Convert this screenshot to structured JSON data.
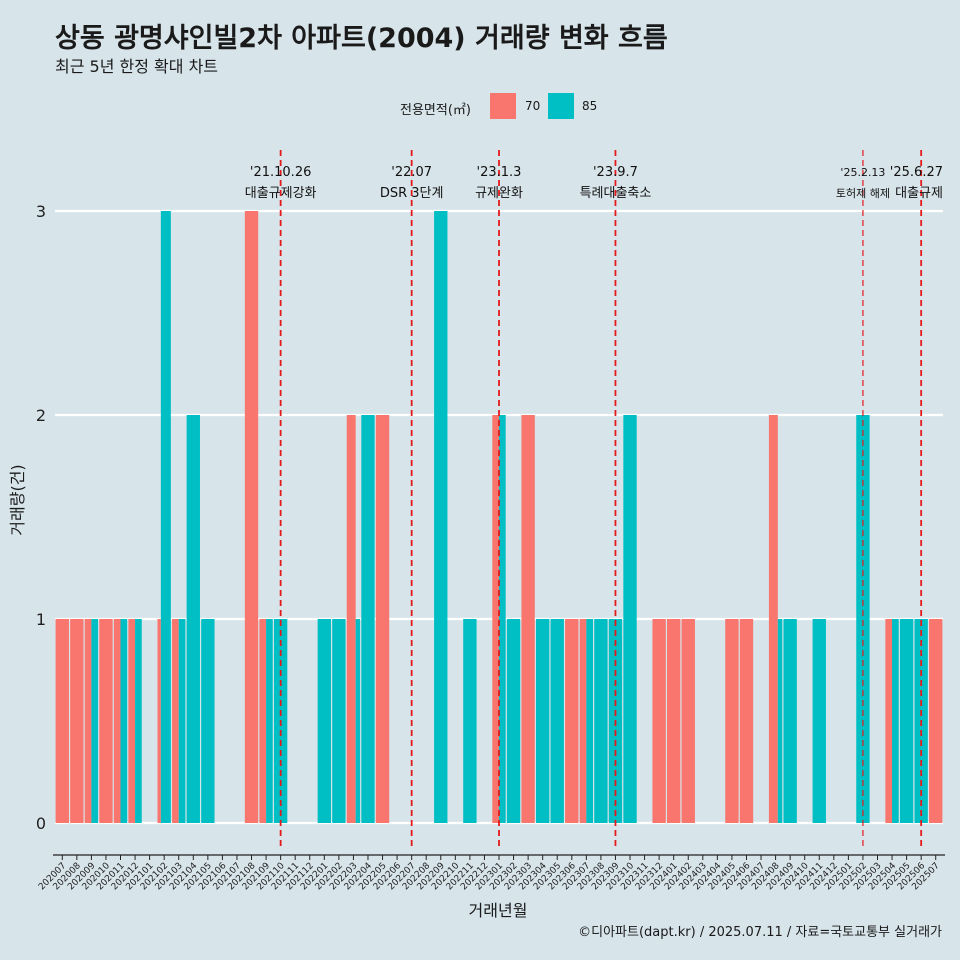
{
  "header": {
    "title": "상동 광명샤인빌2차 아파트(2004) 거래량 변화 흐름",
    "subtitle": "최근 5년 한정 확대 차트"
  },
  "legend": {
    "title": "전용면적(㎡)",
    "items": [
      {
        "label": "70",
        "color": "#f8766d"
      },
      {
        "label": "85",
        "color": "#00bfc4"
      }
    ]
  },
  "axes": {
    "xlabel": "거래년월",
    "ylabel": "거래량(건)"
  },
  "caption": "©디아파트(dapt.kr) / 2025.07.11 / 자료=국토교통부 실거래가",
  "colors": {
    "background": "#d7e4ea",
    "s70": "#f8766d",
    "s85": "#00bfc4",
    "vline": "#e31a1c"
  },
  "chart_data": {
    "type": "bar",
    "title": "상동 광명샤인빌2차 아파트(2004) 거래량 변화 흐름",
    "subtitle": "최근 5년 한정 확대 차트",
    "xlabel": "거래년월",
    "ylabel": "거래량(건)",
    "ylim": [
      0,
      3
    ],
    "y_ticks": [
      0,
      1,
      2,
      3
    ],
    "grid": true,
    "legend_position": "top",
    "categories": [
      "202007",
      "202008",
      "202009",
      "202010",
      "202011",
      "202012",
      "202101",
      "202102",
      "202103",
      "202104",
      "202105",
      "202106",
      "202107",
      "202108",
      "202109",
      "202110",
      "202111",
      "202112",
      "202201",
      "202202",
      "202203",
      "202204",
      "202205",
      "202206",
      "202207",
      "202208",
      "202209",
      "202210",
      "202211",
      "202212",
      "202301",
      "202302",
      "202303",
      "202304",
      "202305",
      "202306",
      "202307",
      "202308",
      "202309",
      "202310",
      "202311",
      "202312",
      "202401",
      "202402",
      "202403",
      "202404",
      "202405",
      "202406",
      "202407",
      "202408",
      "202409",
      "202410",
      "202411",
      "202412",
      "202501",
      "202502",
      "202503",
      "202504",
      "202505",
      "202506",
      "202507"
    ],
    "tick_labels": [
      "202007",
      "202008",
      "202009",
      "202010",
      "202011",
      "202012",
      "202101",
      "202102",
      "202103",
      "202104",
      "202105",
      "202106",
      "202107",
      "202108",
      "202109",
      "202110",
      "202111",
      "202112",
      "202201",
      "202202",
      "202203",
      "202204",
      "202205",
      "202206",
      "202207",
      "202208",
      "202209",
      "202210",
      "202211",
      "202212",
      "202301",
      "202302",
      "202303",
      "202304",
      "202305",
      "202306",
      "202307",
      "202308",
      "202309",
      "202310",
      "202311",
      "202312",
      "202401",
      "202402",
      "202403",
      "202404",
      "202405",
      "202406",
      "202407",
      "202408",
      "202409",
      "202410",
      "202411",
      "202412",
      "202501",
      "202502",
      "202503",
      "202504",
      "202505",
      "202506",
      "202507"
    ],
    "series": [
      {
        "name": "70",
        "values": [
          1,
          1,
          1,
          1,
          1,
          1,
          0,
          1,
          1,
          0,
          0,
          0,
          0,
          3,
          1,
          0,
          0,
          0,
          0,
          0,
          2,
          0,
          2,
          0,
          0,
          0,
          0,
          0,
          0,
          0,
          2,
          0,
          2,
          0,
          0,
          1,
          1,
          0,
          0,
          0,
          0,
          1,
          1,
          1,
          0,
          0,
          1,
          1,
          0,
          2,
          0,
          0,
          0,
          0,
          0,
          0,
          0,
          1,
          0,
          0,
          1
        ]
      },
      {
        "name": "85",
        "values": [
          0,
          0,
          1,
          0,
          1,
          1,
          0,
          3,
          1,
          2,
          1,
          0,
          0,
          0,
          1,
          1,
          0,
          0,
          1,
          1,
          1,
          2,
          0,
          0,
          0,
          0,
          3,
          0,
          1,
          0,
          2,
          1,
          0,
          1,
          1,
          0,
          1,
          1,
          1,
          2,
          0,
          0,
          0,
          0,
          0,
          0,
          0,
          0,
          0,
          1,
          1,
          0,
          1,
          0,
          0,
          2,
          0,
          1,
          1,
          1,
          0
        ]
      }
    ],
    "annotations": [
      {
        "x": "202110",
        "date": "'21.10.26",
        "label": "대출규제강화"
      },
      {
        "x": "202207",
        "date": "'22.07",
        "label": "DSR 3단계"
      },
      {
        "x": "202301",
        "date": "'23.1.3",
        "label": "규제완화"
      },
      {
        "x": "202309",
        "date": "'23.9.7",
        "label": "특례대출축소"
      },
      {
        "x": "202502",
        "date": "'25.2.13",
        "label": "토허제 해제"
      },
      {
        "x": "202506",
        "date": "'25.6.27",
        "label": "대출규제"
      }
    ]
  }
}
